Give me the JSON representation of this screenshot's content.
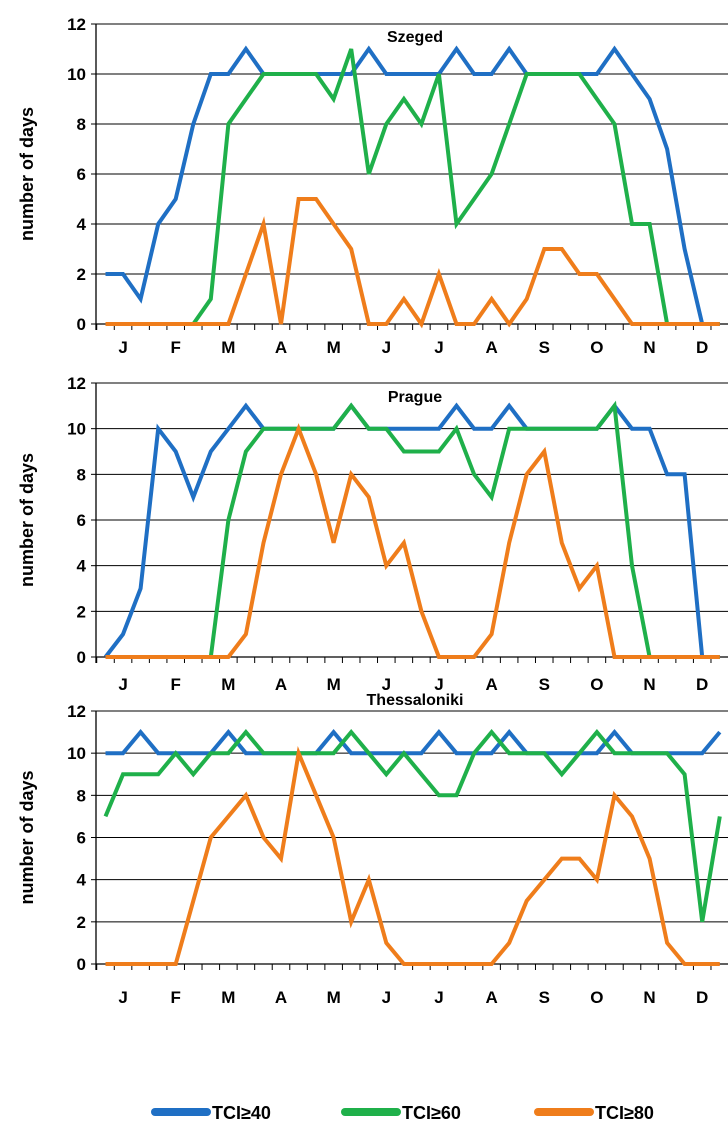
{
  "colors": {
    "TCI≥40": "#1f6fc4",
    "TCI≥60": "#1fb04a",
    "TCI≥80": "#ef7d1b"
  },
  "chart_data": [
    {
      "type": "line",
      "title": "Szeged",
      "ylabel": "number of days",
      "ylim": [
        0,
        12
      ],
      "yticks": [
        0,
        2,
        4,
        6,
        8,
        10,
        12
      ],
      "month_labels": [
        "J",
        "F",
        "M",
        "A",
        "M",
        "J",
        "J",
        "A",
        "S",
        "O",
        "N",
        "D"
      ],
      "grid": true,
      "series": [
        {
          "name": "TCI≥40",
          "values": [
            2,
            2,
            1,
            4,
            5,
            8,
            10,
            10,
            11,
            10,
            10,
            10,
            10,
            10,
            10,
            11,
            10,
            10,
            10,
            10,
            11,
            10,
            10,
            11,
            10,
            10,
            10,
            10,
            10,
            11,
            10,
            9,
            7,
            3,
            0,
            0
          ]
        },
        {
          "name": "TCI≥60",
          "values": [
            0,
            0,
            0,
            0,
            0,
            0,
            1,
            8,
            9,
            10,
            10,
            10,
            10,
            9,
            11,
            6,
            8,
            9,
            8,
            10,
            4,
            5,
            6,
            8,
            10,
            10,
            10,
            10,
            9,
            8,
            4,
            4,
            0,
            0,
            0,
            0
          ]
        },
        {
          "name": "TCI≥80",
          "values": [
            0,
            0,
            0,
            0,
            0,
            0,
            0,
            0,
            2,
            4,
            0,
            5,
            5,
            4,
            3,
            0,
            0,
            1,
            0,
            2,
            0,
            0,
            1,
            0,
            1,
            3,
            3,
            2,
            2,
            1,
            0,
            0,
            0,
            0,
            0,
            0
          ]
        }
      ]
    },
    {
      "type": "line",
      "title": "Prague",
      "ylabel": "number of days",
      "ylim": [
        0,
        12
      ],
      "yticks": [
        0,
        2,
        4,
        6,
        8,
        10,
        12
      ],
      "month_labels": [
        "J",
        "F",
        "M",
        "A",
        "M",
        "J",
        "J",
        "A",
        "S",
        "O",
        "N",
        "D"
      ],
      "grid": true,
      "series": [
        {
          "name": "TCI≥40",
          "values": [
            0,
            1,
            3,
            10,
            9,
            7,
            9,
            10,
            11,
            10,
            10,
            10,
            10,
            10,
            11,
            10,
            10,
            10,
            10,
            10,
            11,
            10,
            10,
            11,
            10,
            10,
            10,
            10,
            10,
            11,
            10,
            10,
            8,
            8,
            0,
            0
          ]
        },
        {
          "name": "TCI≥60",
          "values": [
            0,
            0,
            0,
            0,
            0,
            0,
            0,
            6,
            9,
            10,
            10,
            10,
            10,
            10,
            11,
            10,
            10,
            9,
            9,
            9,
            10,
            8,
            7,
            10,
            10,
            10,
            10,
            10,
            10,
            11,
            4,
            0,
            0,
            0,
            0,
            0
          ]
        },
        {
          "name": "TCI≥80",
          "values": [
            0,
            0,
            0,
            0,
            0,
            0,
            0,
            0,
            1,
            5,
            8,
            10,
            8,
            5,
            8,
            7,
            4,
            5,
            2,
            0,
            0,
            0,
            1,
            5,
            8,
            9,
            5,
            3,
            4,
            0,
            0,
            0,
            0,
            0,
            0,
            0
          ]
        }
      ]
    },
    {
      "type": "line",
      "title": "Thessaloniki",
      "ylabel": "number of days",
      "ylim": [
        0,
        12
      ],
      "yticks": [
        0,
        2,
        4,
        6,
        8,
        10,
        12
      ],
      "month_labels": [
        "J",
        "F",
        "M",
        "A",
        "M",
        "J",
        "J",
        "A",
        "S",
        "O",
        "N",
        "D"
      ],
      "grid": true,
      "series": [
        {
          "name": "TCI≥40",
          "values": [
            10,
            10,
            11,
            10,
            10,
            10,
            10,
            11,
            10,
            10,
            10,
            10,
            10,
            11,
            10,
            10,
            10,
            10,
            10,
            11,
            10,
            10,
            10,
            11,
            10,
            10,
            10,
            10,
            10,
            11,
            10,
            10,
            10,
            10,
            10,
            11
          ]
        },
        {
          "name": "TCI≥60",
          "values": [
            7,
            9,
            9,
            9,
            10,
            9,
            10,
            10,
            11,
            10,
            10,
            10,
            10,
            10,
            11,
            10,
            9,
            10,
            9,
            8,
            8,
            10,
            11,
            10,
            10,
            10,
            9,
            10,
            11,
            10,
            10,
            10,
            10,
            9,
            2,
            7
          ]
        },
        {
          "name": "TCI≥80",
          "values": [
            0,
            0,
            0,
            0,
            0,
            3,
            6,
            7,
            8,
            6,
            5,
            10,
            8,
            6,
            2,
            4,
            1,
            0,
            0,
            0,
            0,
            0,
            0,
            1,
            3,
            4,
            5,
            5,
            4,
            8,
            7,
            5,
            1,
            0,
            0,
            0
          ]
        }
      ]
    }
  ],
  "legend": {
    "items": [
      {
        "label": "TCI≥40",
        "color": "#1f6fc4"
      },
      {
        "label": "TCI≥60",
        "color": "#1fb04a"
      },
      {
        "label": "TCI≥80",
        "color": "#ef7d1b"
      }
    ]
  }
}
